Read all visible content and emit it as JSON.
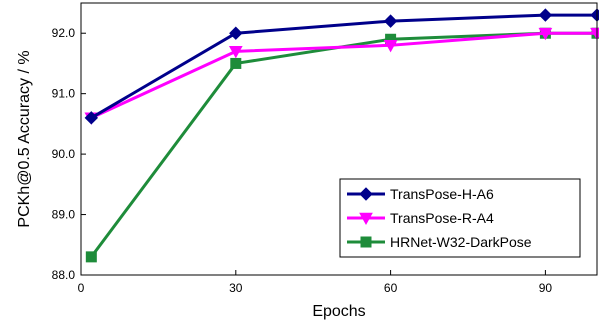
{
  "chart_data": {
    "type": "line",
    "xlabel": "Epochs",
    "ylabel": "PCKh@0.5 Accuracy / %",
    "xlim": [
      0,
      100
    ],
    "ylim": [
      88.0,
      92.5
    ],
    "xticks": [
      0,
      30,
      60,
      90
    ],
    "xtick_labels": [
      "0",
      "30",
      "60",
      "90"
    ],
    "yticks": [
      88.0,
      89.0,
      90.0,
      91.0,
      92.0
    ],
    "ytick_labels": [
      "88.0",
      "89.0",
      "90.0",
      "91.0",
      "92.0"
    ],
    "grid": false,
    "legend_position": "bottom-right",
    "series": [
      {
        "name": "TransPose-H-A6",
        "color": "#00008b",
        "marker": "diamond",
        "x": [
          2,
          30,
          60,
          90,
          100
        ],
        "y": [
          90.6,
          92.0,
          92.2,
          92.3,
          92.3
        ]
      },
      {
        "name": "TransPose-R-A4",
        "color": "#ff00ff",
        "marker": "triangle-down",
        "x": [
          2,
          30,
          60,
          90,
          100
        ],
        "y": [
          90.6,
          91.7,
          91.8,
          92.0,
          92.0
        ]
      },
      {
        "name": "HRNet-W32-DarkPose",
        "color": "#1e8c3a",
        "marker": "square",
        "x": [
          2,
          30,
          60,
          90,
          100
        ],
        "y": [
          88.3,
          91.5,
          91.9,
          92.0,
          92.0
        ]
      }
    ]
  }
}
